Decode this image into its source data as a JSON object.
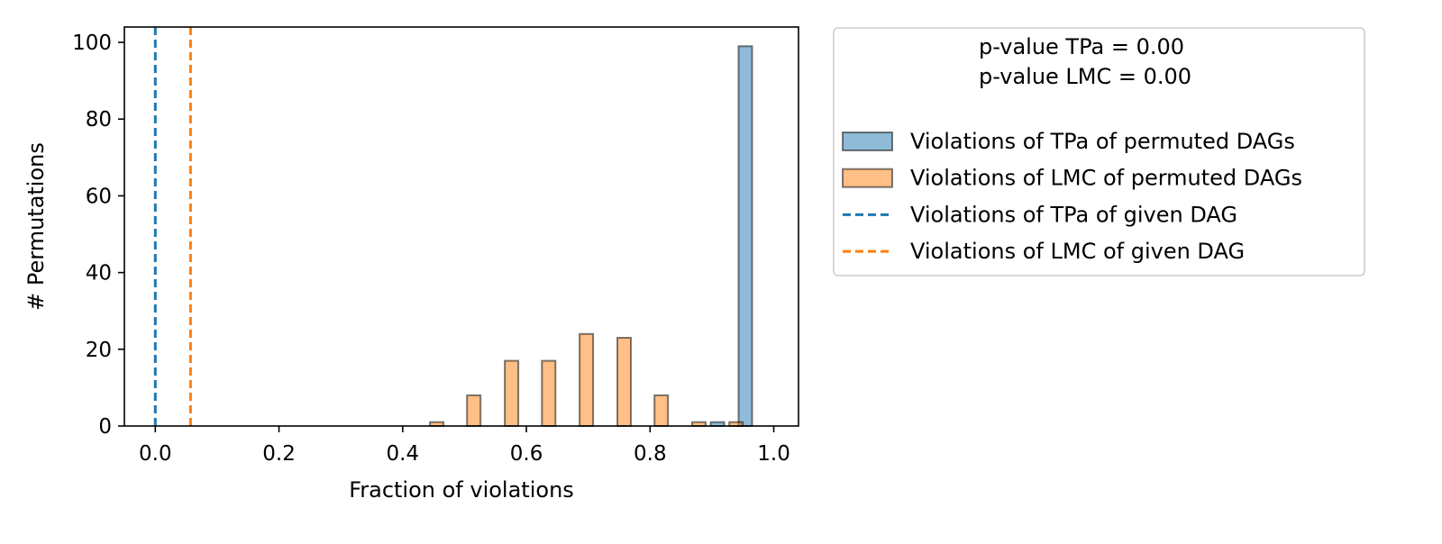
{
  "chart_data": {
    "type": "bar",
    "xlabel": "Fraction of violations",
    "ylabel": "# Permutations",
    "xlim": [
      -0.05,
      1.04
    ],
    "ylim": [
      0,
      104
    ],
    "x_ticks": [
      "0.0",
      "0.2",
      "0.4",
      "0.6",
      "0.8",
      "1.0"
    ],
    "y_ticks": [
      "0",
      "20",
      "40",
      "60",
      "80",
      "100"
    ],
    "grid": false,
    "legend_placement": "outside right, top",
    "legend_header": [
      "p-value TPa = 0.00",
      "p-value LMC = 0.00"
    ],
    "series": [
      {
        "name": "Violations of TPa of permuted DAGs",
        "kind": "histogram",
        "color": "#1f77b4",
        "bars": [
          {
            "x": 0.909,
            "value": 1
          },
          {
            "x": 0.954,
            "value": 99
          }
        ]
      },
      {
        "name": "Violations of LMC of permuted DAGs",
        "kind": "histogram",
        "color": "#ff7f0e",
        "bars": [
          {
            "x": 0.455,
            "value": 1
          },
          {
            "x": 0.515,
            "value": 8
          },
          {
            "x": 0.576,
            "value": 17
          },
          {
            "x": 0.636,
            "value": 17
          },
          {
            "x": 0.697,
            "value": 24
          },
          {
            "x": 0.758,
            "value": 23
          },
          {
            "x": 0.818,
            "value": 8
          },
          {
            "x": 0.879,
            "value": 1
          },
          {
            "x": 0.939,
            "value": 1
          }
        ]
      },
      {
        "name": "Violations of TPa of given DAG",
        "kind": "vline",
        "color": "#1f77b4",
        "x": 0.0
      },
      {
        "name": "Violations of LMC of given DAG",
        "kind": "vline",
        "color": "#ff7f0e",
        "x": 0.057
      }
    ]
  }
}
